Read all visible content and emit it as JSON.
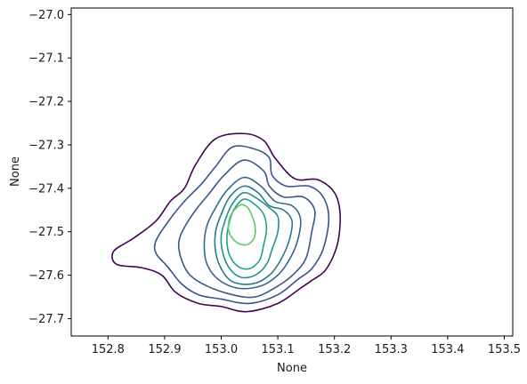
{
  "chart_data": {
    "type": "contour",
    "title": "",
    "xlabel": "None",
    "ylabel": "None",
    "xlim": [
      152.735,
      153.515
    ],
    "ylim": [
      -27.74,
      -26.985
    ],
    "grid": false,
    "legend": "none",
    "x_ticks": [
      152.8,
      152.9,
      153.0,
      153.1,
      153.2,
      153.3,
      153.4,
      153.5
    ],
    "x_tick_labels": [
      "152.8",
      "152.9",
      "153.0",
      "153.1",
      "153.2",
      "153.3",
      "153.4",
      "153.5"
    ],
    "y_ticks": [
      -27.0,
      -27.1,
      -27.2,
      -27.3,
      -27.4,
      -27.5,
      -27.6,
      -27.7
    ],
    "y_tick_labels": [
      "−27.0",
      "−27.1",
      "−27.2",
      "−27.3",
      "−27.4",
      "−27.5",
      "−27.6",
      "−27.7"
    ],
    "colormap": "viridis",
    "levels": [
      {
        "color": "#440154",
        "points": [
          [
            153.04,
            -27.274
          ],
          [
            152.99,
            -27.286
          ],
          [
            152.955,
            -27.345
          ],
          [
            152.935,
            -27.4
          ],
          [
            152.91,
            -27.43
          ],
          [
            152.885,
            -27.475
          ],
          [
            152.845,
            -27.515
          ],
          [
            152.81,
            -27.545
          ],
          [
            152.815,
            -27.575
          ],
          [
            152.86,
            -27.583
          ],
          [
            152.895,
            -27.6
          ],
          [
            152.92,
            -27.64
          ],
          [
            152.96,
            -27.665
          ],
          [
            153.0,
            -27.672
          ],
          [
            153.045,
            -27.684
          ],
          [
            153.1,
            -27.665
          ],
          [
            153.14,
            -27.63
          ],
          [
            153.16,
            -27.612
          ],
          [
            153.185,
            -27.587
          ],
          [
            153.205,
            -27.53
          ],
          [
            153.21,
            -27.46
          ],
          [
            153.2,
            -27.41
          ],
          [
            153.17,
            -27.38
          ],
          [
            153.13,
            -27.378
          ],
          [
            153.095,
            -27.33
          ],
          [
            153.075,
            -27.29
          ]
        ]
      },
      {
        "color": "#3b518b",
        "points": [
          [
            153.02,
            -27.305
          ],
          [
            152.99,
            -27.35
          ],
          [
            152.965,
            -27.39
          ],
          [
            152.935,
            -27.43
          ],
          [
            152.91,
            -27.47
          ],
          [
            152.885,
            -27.52
          ],
          [
            152.885,
            -27.55
          ],
          [
            152.905,
            -27.58
          ],
          [
            152.93,
            -27.62
          ],
          [
            152.96,
            -27.645
          ],
          [
            153.0,
            -27.655
          ],
          [
            153.05,
            -27.665
          ],
          [
            153.1,
            -27.645
          ],
          [
            153.135,
            -27.61
          ],
          [
            153.16,
            -27.585
          ],
          [
            153.18,
            -27.54
          ],
          [
            153.19,
            -27.47
          ],
          [
            153.18,
            -27.42
          ],
          [
            153.155,
            -27.395
          ],
          [
            153.115,
            -27.395
          ],
          [
            153.09,
            -27.37
          ],
          [
            153.085,
            -27.33
          ],
          [
            153.06,
            -27.31
          ]
        ]
      },
      {
        "color": "#39568c",
        "points": [
          [
            153.04,
            -27.335
          ],
          [
            153.005,
            -27.37
          ],
          [
            152.98,
            -27.41
          ],
          [
            152.955,
            -27.45
          ],
          [
            152.935,
            -27.49
          ],
          [
            152.925,
            -27.525
          ],
          [
            152.93,
            -27.565
          ],
          [
            152.945,
            -27.6
          ],
          [
            152.975,
            -27.625
          ],
          [
            153.02,
            -27.645
          ],
          [
            153.06,
            -27.65
          ],
          [
            153.1,
            -27.625
          ],
          [
            153.13,
            -27.595
          ],
          [
            153.15,
            -27.56
          ],
          [
            153.16,
            -27.5
          ],
          [
            153.165,
            -27.45
          ],
          [
            153.145,
            -27.42
          ],
          [
            153.11,
            -27.42
          ],
          [
            153.085,
            -27.395
          ],
          [
            153.075,
            -27.36
          ]
        ]
      },
      {
        "color": "#31688e",
        "points": [
          [
            153.04,
            -27.375
          ],
          [
            153.01,
            -27.405
          ],
          [
            152.99,
            -27.445
          ],
          [
            152.975,
            -27.485
          ],
          [
            152.97,
            -27.53
          ],
          [
            152.975,
            -27.575
          ],
          [
            152.995,
            -27.61
          ],
          [
            153.03,
            -27.63
          ],
          [
            153.07,
            -27.625
          ],
          [
            153.1,
            -27.6
          ],
          [
            153.12,
            -27.565
          ],
          [
            153.135,
            -27.52
          ],
          [
            153.14,
            -27.47
          ],
          [
            153.125,
            -27.44
          ],
          [
            153.095,
            -27.43
          ],
          [
            153.07,
            -27.395
          ]
        ]
      },
      {
        "color": "#2a788e",
        "points": [
          [
            153.04,
            -27.395
          ],
          [
            153.015,
            -27.42
          ],
          [
            153.0,
            -27.46
          ],
          [
            152.99,
            -27.5
          ],
          [
            152.99,
            -27.545
          ],
          [
            153.0,
            -27.585
          ],
          [
            153.02,
            -27.615
          ],
          [
            153.055,
            -27.62
          ],
          [
            153.085,
            -27.6
          ],
          [
            153.105,
            -27.565
          ],
          [
            153.12,
            -27.52
          ],
          [
            153.125,
            -27.475
          ],
          [
            153.11,
            -27.45
          ],
          [
            153.085,
            -27.44
          ],
          [
            153.065,
            -27.41
          ]
        ]
      },
      {
        "color": "#21918c",
        "points": [
          [
            153.04,
            -27.41
          ],
          [
            153.02,
            -27.435
          ],
          [
            153.008,
            -27.47
          ],
          [
            153.0,
            -27.51
          ],
          [
            153.003,
            -27.55
          ],
          [
            153.015,
            -27.585
          ],
          [
            153.035,
            -27.605
          ],
          [
            153.06,
            -27.6
          ],
          [
            153.08,
            -27.575
          ],
          [
            153.09,
            -27.54
          ],
          [
            153.1,
            -27.5
          ],
          [
            153.1,
            -27.465
          ],
          [
            153.085,
            -27.445
          ],
          [
            153.065,
            -27.425
          ]
        ]
      },
      {
        "color": "#1fa187",
        "points": [
          [
            153.04,
            -27.425
          ],
          [
            153.022,
            -27.45
          ],
          [
            153.013,
            -27.485
          ],
          [
            153.01,
            -27.52
          ],
          [
            153.015,
            -27.555
          ],
          [
            153.03,
            -27.58
          ],
          [
            153.05,
            -27.585
          ],
          [
            153.068,
            -27.565
          ],
          [
            153.075,
            -27.53
          ],
          [
            153.08,
            -27.495
          ],
          [
            153.075,
            -27.46
          ],
          [
            153.06,
            -27.438
          ]
        ]
      },
      {
        "color": "#5ec962",
        "points": [
          [
            153.035,
            -27.438
          ],
          [
            153.02,
            -27.455
          ],
          [
            153.013,
            -27.48
          ],
          [
            153.015,
            -27.505
          ],
          [
            153.028,
            -27.525
          ],
          [
            153.045,
            -27.53
          ],
          [
            153.058,
            -27.515
          ],
          [
            153.06,
            -27.49
          ],
          [
            153.055,
            -27.465
          ],
          [
            153.047,
            -27.445
          ]
        ]
      }
    ]
  }
}
